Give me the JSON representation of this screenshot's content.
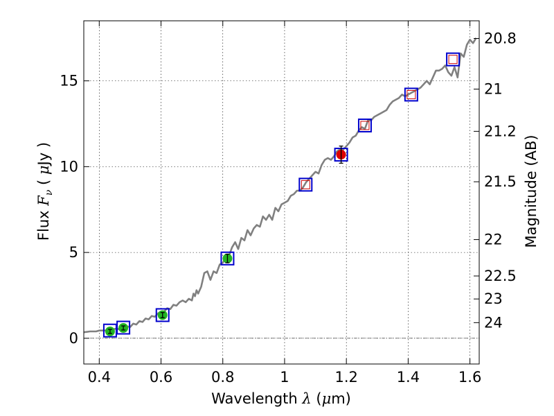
{
  "chart_data": {
    "type": "line",
    "xlabel_parts": [
      "Wavelength  ",
      "λ",
      " (",
      "μ",
      "m)"
    ],
    "ylabel_parts": [
      "Flux  ",
      "F",
      "ν",
      "  ( ",
      "μ",
      "Jy )"
    ],
    "y2label": "Magnitude (AB)",
    "xlim": [
      0.35,
      1.63
    ],
    "ylim": [
      -1.5,
      18.5
    ],
    "xticks": [
      0.4,
      0.6,
      0.8,
      1.0,
      1.2,
      1.4,
      1.6
    ],
    "xtick_labels": [
      "0.4",
      "0.6",
      "0.8",
      "1",
      "1.2",
      "1.4",
      "1.6"
    ],
    "yticks": [
      0,
      5,
      10,
      15
    ],
    "ytick_labels": [
      "0",
      "5",
      "10",
      "15"
    ],
    "y2ticks": [
      {
        "flux": 17.47,
        "label": "20.8"
      },
      {
        "flux": 14.52,
        "label": "21"
      },
      {
        "flux": 12.06,
        "label": "21.2"
      },
      {
        "flux": 9.12,
        "label": "21.5"
      },
      {
        "flux": 5.75,
        "label": "22"
      },
      {
        "flux": 3.63,
        "label": "22.5"
      },
      {
        "flux": 2.29,
        "label": "23"
      },
      {
        "flux": 0.91,
        "label": "24"
      }
    ],
    "grid": true,
    "zero_line": true,
    "colors": {
      "model": "#808080",
      "box": "#0000cc",
      "green_point": "#22b322",
      "red_point": "#dd0000",
      "open_marker": "#cc0000"
    },
    "series": [
      {
        "kind": "model-spectrum",
        "x": [
          0.35,
          0.37,
          0.39,
          0.4,
          0.42,
          0.43,
          0.44,
          0.45,
          0.46,
          0.48,
          0.49,
          0.5,
          0.51,
          0.52,
          0.53,
          0.54,
          0.55,
          0.56,
          0.57,
          0.58,
          0.59,
          0.6,
          0.61,
          0.62,
          0.63,
          0.64,
          0.65,
          0.66,
          0.67,
          0.68,
          0.69,
          0.7,
          0.705,
          0.71,
          0.715,
          0.72,
          0.73,
          0.74,
          0.75,
          0.76,
          0.77,
          0.78,
          0.79,
          0.8,
          0.81,
          0.82,
          0.83,
          0.84,
          0.85,
          0.86,
          0.87,
          0.88,
          0.89,
          0.9,
          0.91,
          0.92,
          0.93,
          0.94,
          0.95,
          0.96,
          0.97,
          0.98,
          0.99,
          1.0,
          1.01,
          1.02,
          1.03,
          1.04,
          1.05,
          1.06,
          1.07,
          1.08,
          1.09,
          1.1,
          1.11,
          1.12,
          1.13,
          1.14,
          1.15,
          1.16,
          1.17,
          1.18,
          1.19,
          1.2,
          1.21,
          1.22,
          1.23,
          1.24,
          1.25,
          1.26,
          1.27,
          1.28,
          1.29,
          1.3,
          1.31,
          1.32,
          1.33,
          1.34,
          1.35,
          1.36,
          1.37,
          1.38,
          1.39,
          1.4,
          1.41,
          1.42,
          1.43,
          1.44,
          1.45,
          1.46,
          1.47,
          1.48,
          1.49,
          1.5,
          1.51,
          1.52,
          1.53,
          1.54,
          1.55,
          1.56,
          1.57,
          1.58,
          1.59,
          1.6,
          1.61,
          1.62
        ],
        "y": [
          0.35,
          0.4,
          0.4,
          0.45,
          0.45,
          0.5,
          0.4,
          0.55,
          0.55,
          0.4,
          0.7,
          0.65,
          0.85,
          0.8,
          1.0,
          0.95,
          1.15,
          1.1,
          1.3,
          1.25,
          1.45,
          1.55,
          1.55,
          1.75,
          1.7,
          1.95,
          1.9,
          2.1,
          2.2,
          2.1,
          2.3,
          2.2,
          2.6,
          2.45,
          2.8,
          2.6,
          3.0,
          3.8,
          3.9,
          3.4,
          3.9,
          3.8,
          4.3,
          4.4,
          4.7,
          4.8,
          5.3,
          5.6,
          5.2,
          5.85,
          5.7,
          6.3,
          6.0,
          6.4,
          6.6,
          6.5,
          7.1,
          6.9,
          7.2,
          6.9,
          7.6,
          7.4,
          7.8,
          7.9,
          8.0,
          8.3,
          8.4,
          8.6,
          8.6,
          8.8,
          9.1,
          9.3,
          9.5,
          9.7,
          9.6,
          10.1,
          10.4,
          10.5,
          10.4,
          10.6,
          10.9,
          11.0,
          11.0,
          11.2,
          11.4,
          11.7,
          11.8,
          12.1,
          12.3,
          12.2,
          12.7,
          12.7,
          12.9,
          13.0,
          13.1,
          13.2,
          13.3,
          13.6,
          13.8,
          13.9,
          14.0,
          14.2,
          14.1,
          14.2,
          14.3,
          14.4,
          14.5,
          14.6,
          14.8,
          15.0,
          14.8,
          15.2,
          15.6,
          15.6,
          15.7,
          15.9,
          15.5,
          15.3,
          15.8,
          15.2,
          16.6,
          16.4,
          17.1,
          17.4,
          17.2,
          17.5
        ]
      },
      {
        "kind": "model-band-fluxes",
        "x": [
          0.435,
          0.478,
          0.605,
          0.815,
          1.068,
          1.183,
          1.26,
          1.41,
          1.545
        ],
        "y": [
          0.45,
          0.62,
          1.35,
          4.65,
          8.95,
          10.7,
          12.4,
          14.2,
          16.25
        ]
      },
      {
        "kind": "observed-detections",
        "x": [
          0.435,
          0.478,
          0.605,
          0.815,
          1.183
        ],
        "y": [
          0.4,
          0.6,
          1.35,
          4.65,
          10.7
        ],
        "yerr": [
          0.12,
          0.12,
          0.15,
          0.25,
          0.5
        ],
        "colors": [
          "#22b322",
          "#22b322",
          "#22b322",
          "#22b322",
          "#dd0000"
        ]
      },
      {
        "kind": "open-markers",
        "x": [
          1.068,
          1.26,
          1.41,
          1.545
        ],
        "y": [
          8.95,
          12.4,
          14.2,
          16.25
        ]
      }
    ]
  }
}
